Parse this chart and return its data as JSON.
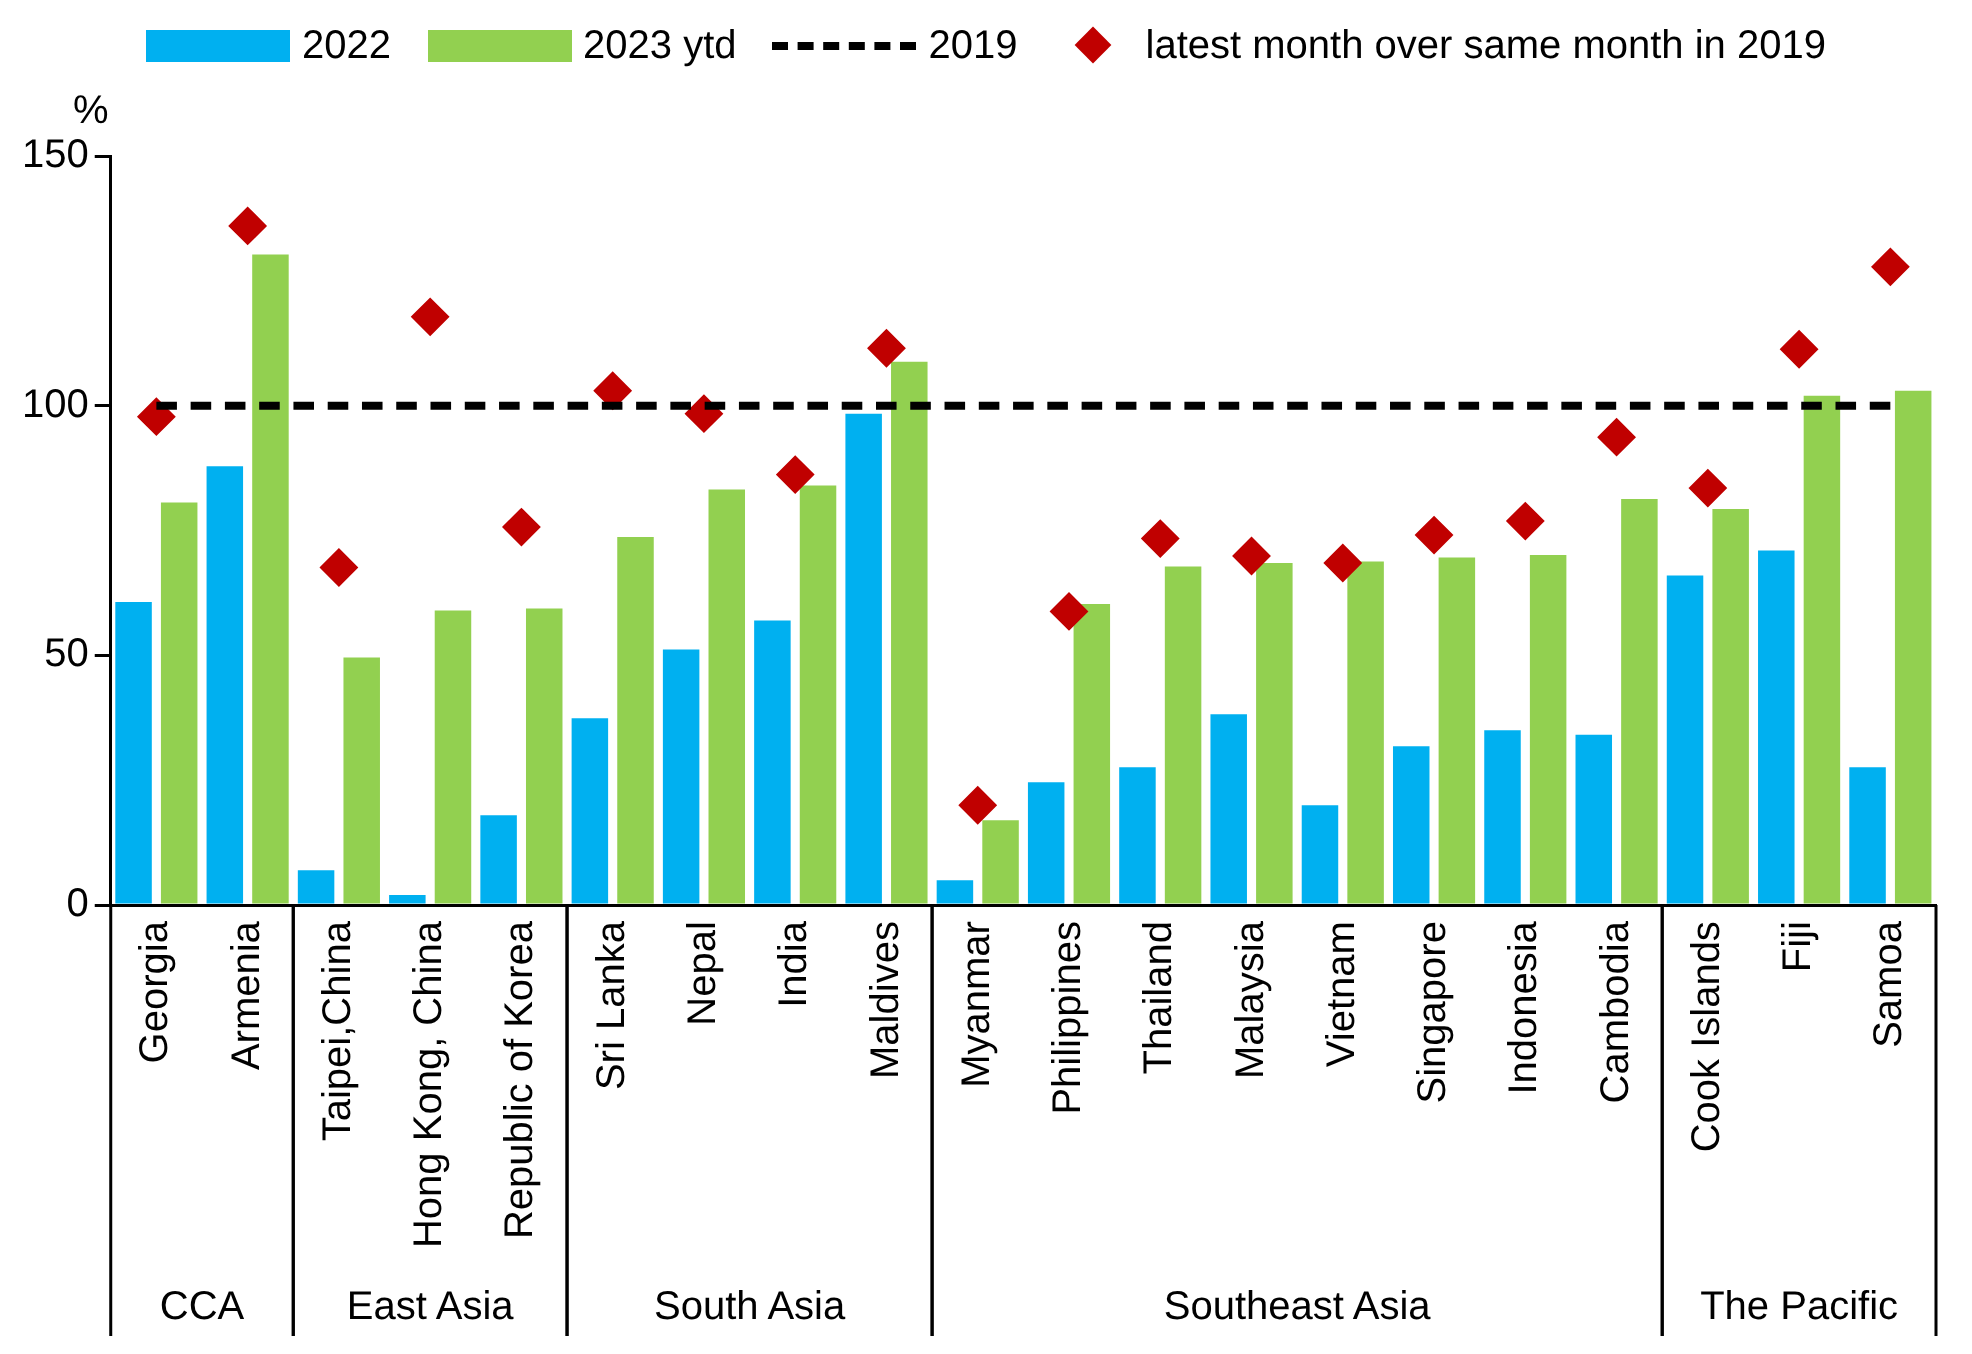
{
  "chart_data": {
    "type": "bar",
    "ylabel": "%",
    "legend": "top",
    "grid": false,
    "categories": [
      "Georgia",
      "Armenia",
      "Taipei,China",
      "Hong Kong, China",
      "Republic of Korea",
      "Sri Lanka",
      "Nepal",
      "India",
      "Maldives",
      "Myanmar",
      "Philippines",
      "Thailand",
      "Malaysia",
      "Vietnam",
      "Singapore",
      "Indonesia",
      "Cambodia",
      "Cook Islands",
      "Fiji",
      "Samoa"
    ],
    "series": [
      {
        "name": "2022",
        "color": "#00b0f0",
        "values": [
          60.7,
          87.9,
          7,
          2,
          18,
          37.4,
          51.2,
          57,
          98.4,
          5,
          24.6,
          27.6,
          38.2,
          20,
          31.8,
          35,
          34.1,
          66,
          71,
          27.6
        ]
      },
      {
        "name": "2023 ytd",
        "color": "#92d050",
        "values": [
          80.6,
          130.3,
          49.6,
          59,
          59.4,
          73.7,
          83.2,
          84,
          108.8,
          17,
          60.3,
          67.8,
          68.5,
          68.8,
          69.6,
          70.1,
          81.3,
          79.3,
          102,
          103
        ]
      },
      {
        "name": "2019",
        "type": "line",
        "line_style": "dashed",
        "marker": "none",
        "color": "#000000",
        "values": [
          100,
          100,
          100,
          100,
          100,
          100,
          100,
          100,
          100,
          100,
          100,
          100,
          100,
          100,
          100,
          100,
          100,
          100,
          100,
          100
        ]
      },
      {
        "name": "latest month over same month in 2019",
        "type": "scatter",
        "marker": "diamond",
        "color": "#c00000",
        "values": [
          97.8,
          136,
          67.6,
          117.8,
          75.7,
          103,
          98.4,
          86.2,
          111.5,
          20,
          58.8,
          73.4,
          69.9,
          68.5,
          74.1,
          76.9,
          93.7,
          83.5,
          111.3,
          127.8
        ]
      }
    ],
    "ylim": [
      0,
      150
    ],
    "yticks": [
      0,
      50,
      100,
      150
    ],
    "annotations": [
      "CCA",
      "East Asia",
      "South Asia",
      "Southeast Asia",
      "The Pacific"
    ]
  }
}
